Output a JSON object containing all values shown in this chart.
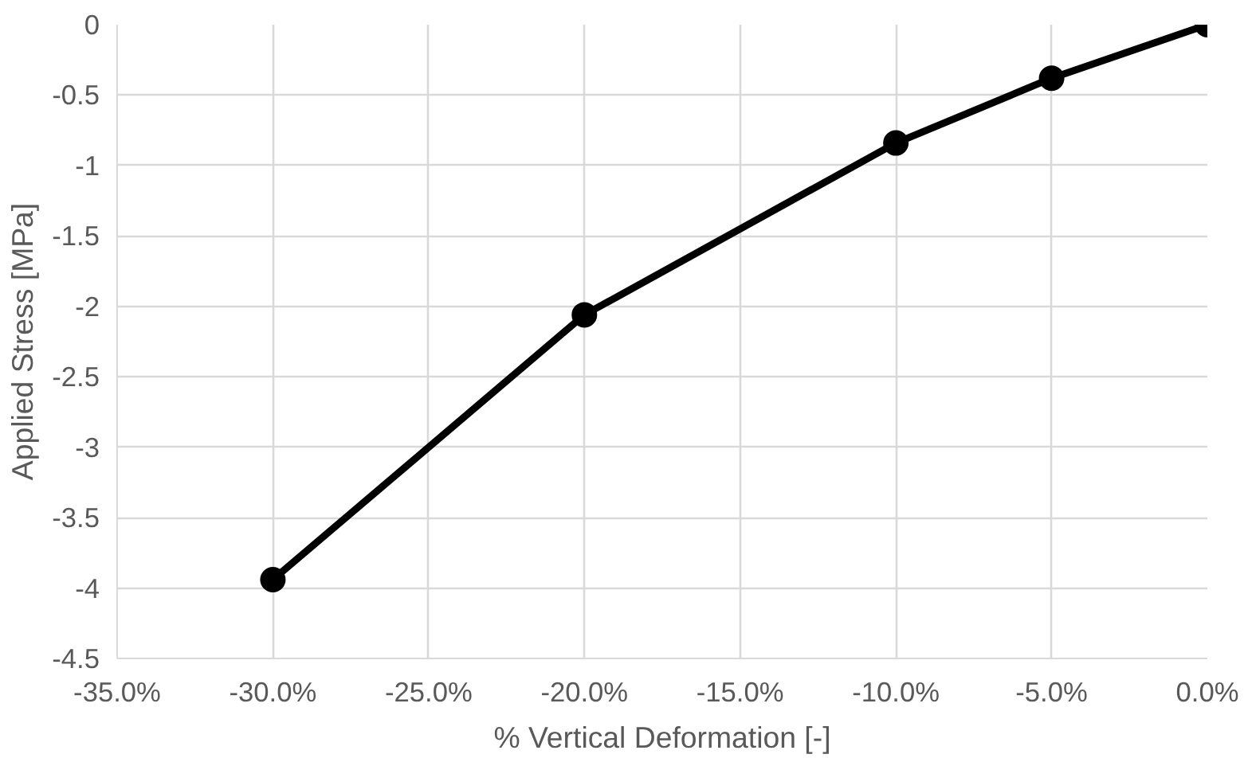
{
  "chart_data": {
    "type": "line",
    "xlabel": "% Vertical Deformation [-]",
    "ylabel": "Applied Stress [MPa]",
    "x": [
      -30,
      -20,
      -10,
      -5,
      0
    ],
    "series": [
      {
        "color": "#000000",
        "values": [
          -3.94,
          -2.06,
          -0.84,
          -0.38,
          0
        ]
      }
    ],
    "xlim": [
      -35,
      0
    ],
    "ylim": [
      -4.5,
      0
    ],
    "xticks": [
      {
        "value": -35,
        "label": "-35.0%"
      },
      {
        "value": -30,
        "label": "-30.0%"
      },
      {
        "value": -25,
        "label": "-25.0%"
      },
      {
        "value": -20,
        "label": "-20.0%"
      },
      {
        "value": -15,
        "label": "-15.0%"
      },
      {
        "value": -10,
        "label": "-10.0%"
      },
      {
        "value": -5,
        "label": "-5.0%"
      },
      {
        "value": 0,
        "label": "0.0%"
      }
    ],
    "yticks": [
      0,
      -0.5,
      -1,
      -1.5,
      -2,
      -2.5,
      -3,
      -3.5,
      -4,
      -4.5
    ],
    "grid": true,
    "marker": "circle",
    "line_style": "solid"
  }
}
